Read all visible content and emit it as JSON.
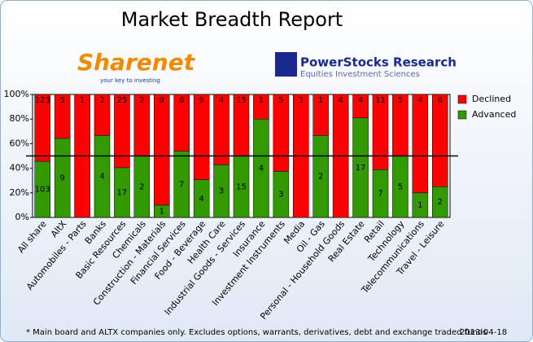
{
  "chart_data": {
    "type": "stacked_percent_bar",
    "title": "Market Breadth Report",
    "logos": [
      {
        "name": "Sharenet",
        "tagline": "your key to investing"
      },
      {
        "name": "PowerStocks  Research",
        "tagline": "Equities Investment Sciences"
      }
    ],
    "categories": [
      "All share",
      "AltX",
      "Automobiles - Parts",
      "Banks",
      "Basic Resources",
      "Chemicals",
      "Construction - Materials",
      "Financial Services",
      "Food - Beverage",
      "Health Care",
      "Industrial Goods - Services",
      "Insurance",
      "Investment Instruments",
      "Media",
      "Oil - Gas",
      "Personal - Household Goods",
      "Real Estate",
      "Retail",
      "Technology",
      "Telecommunications",
      "Travel - Leisure"
    ],
    "series": [
      {
        "name": "Advanced",
        "color": "#339900",
        "values": [
          103,
          9,
          0,
          4,
          17,
          2,
          1,
          7,
          4,
          3,
          15,
          4,
          3,
          0,
          2,
          0,
          17,
          7,
          5,
          1,
          2
        ]
      },
      {
        "name": "Declined",
        "color": "#ff0000",
        "values": [
          123,
          5,
          1,
          2,
          25,
          2,
          9,
          6,
          9,
          4,
          15,
          1,
          5,
          3,
          1,
          4,
          4,
          11,
          5,
          4,
          6
        ]
      }
    ],
    "ylim": [
      0,
      100
    ],
    "yticks": [
      {
        "value": 0,
        "label": "0%"
      },
      {
        "value": 20,
        "label": "20%"
      },
      {
        "value": 40,
        "label": "40%"
      },
      {
        "value": 60,
        "label": "60%"
      },
      {
        "value": 80,
        "label": "80%"
      },
      {
        "value": 100,
        "label": "100%"
      }
    ],
    "reference_line": 50,
    "legend": "right",
    "footnote": "* Main board and ALTX companies only. Excludes options, warrants, derivatives, debt and exchange traded funds",
    "date": "2013-04-18"
  }
}
